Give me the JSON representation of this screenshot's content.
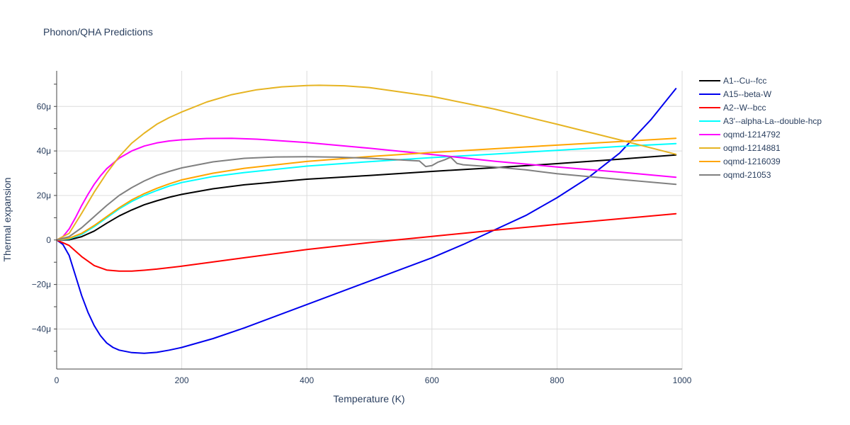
{
  "chart_data": {
    "type": "line",
    "title": "Phonon/QHA Predictions",
    "xlabel": "Temperature (K)",
    "ylabel": "Thermal expansion",
    "xlim": [
      0,
      1000
    ],
    "ylim": [
      -5.8e-05,
      7.6e-05
    ],
    "x_ticks": [
      0,
      200,
      400,
      600,
      800,
      1000
    ],
    "x_tick_labels": [
      "0",
      "200",
      "400",
      "600",
      "800",
      "1000"
    ],
    "y_ticks": [
      -4e-05,
      -2e-05,
      0,
      2e-05,
      4e-05,
      6e-05
    ],
    "y_tick_labels": [
      "−40μ",
      "−20μ",
      "0",
      "20μ",
      "40μ",
      "60μ"
    ],
    "grid": true,
    "legend_position": "right",
    "series": [
      {
        "name": "A1--Cu--fcc",
        "color": "#000000",
        "x": [
          0,
          20,
          40,
          60,
          80,
          100,
          120,
          140,
          160,
          180,
          200,
          250,
          300,
          400,
          500,
          600,
          700,
          800,
          900,
          990
        ],
        "y": [
          0,
          1e-07,
          1.5e-06,
          4e-06,
          7.5e-06,
          1.08e-05,
          1.35e-05,
          1.58e-05,
          1.76e-05,
          1.92e-05,
          2.05e-05,
          2.3e-05,
          2.48e-05,
          2.73e-05,
          2.9e-05,
          3.08e-05,
          3.25e-05,
          3.43e-05,
          3.63e-05,
          3.82e-05
        ]
      },
      {
        "name": "A15--beta-W",
        "color": "#0000ee",
        "x": [
          0,
          10,
          20,
          30,
          40,
          50,
          60,
          70,
          80,
          90,
          100,
          120,
          140,
          160,
          180,
          200,
          250,
          300,
          400,
          500,
          600,
          650,
          700,
          750,
          800,
          850,
          900,
          950,
          990
        ],
        "y": [
          0,
          -2e-06,
          -7e-06,
          -1.6e-05,
          -2.5e-05,
          -3.25e-05,
          -3.85e-05,
          -4.3e-05,
          -4.63e-05,
          -4.83e-05,
          -4.95e-05,
          -5.06e-05,
          -5.09e-05,
          -5.05e-05,
          -4.95e-05,
          -4.83e-05,
          -4.43e-05,
          -3.95e-05,
          -2.9e-05,
          -1.85e-05,
          -8e-06,
          -2e-06,
          4.5e-06,
          1.1e-05,
          1.9e-05,
          2.8e-05,
          3.9e-05,
          5.4e-05,
          6.8e-05
        ]
      },
      {
        "name": "A2--W--bcc",
        "color": "#ff0000",
        "x": [
          0,
          20,
          40,
          60,
          80,
          100,
          120,
          140,
          160,
          200,
          300,
          400,
          500,
          600,
          700,
          800,
          900,
          990
        ],
        "y": [
          0,
          -2.5e-06,
          -7.5e-06,
          -1.15e-05,
          -1.35e-05,
          -1.4e-05,
          -1.4e-05,
          -1.36e-05,
          -1.31e-05,
          -1.18e-05,
          -8e-06,
          -4.3e-06,
          -1.2e-06,
          1.6e-06,
          4.4e-06,
          7e-06,
          9.5e-06,
          1.18e-05
        ]
      },
      {
        "name": "A3'--alpha-La--double-hcp",
        "color": "#00ffff",
        "x": [
          0,
          20,
          40,
          60,
          80,
          100,
          120,
          140,
          160,
          180,
          200,
          250,
          300,
          400,
          500,
          600,
          700,
          800,
          900,
          990
        ],
        "y": [
          0,
          5e-07,
          2.5e-06,
          6e-06,
          1e-05,
          1.4e-05,
          1.73e-05,
          2e-05,
          2.22e-05,
          2.42e-05,
          2.58e-05,
          2.85e-05,
          3.03e-05,
          3.32e-05,
          3.52e-05,
          3.7e-05,
          3.86e-05,
          4.03e-05,
          4.2e-05,
          4.33e-05
        ]
      },
      {
        "name": "oqmd-1214792",
        "color": "#ff00ff",
        "x": [
          0,
          10,
          20,
          30,
          40,
          50,
          60,
          70,
          80,
          100,
          120,
          140,
          160,
          180,
          200,
          240,
          280,
          320,
          400,
          500,
          600,
          700,
          800,
          900,
          990
        ],
        "y": [
          0,
          1.5e-06,
          5e-06,
          1e-05,
          1.55e-05,
          2.05e-05,
          2.5e-05,
          2.88e-05,
          3.2e-05,
          3.68e-05,
          4e-05,
          4.22e-05,
          4.36e-05,
          4.45e-05,
          4.5e-05,
          4.56e-05,
          4.57e-05,
          4.53e-05,
          4.38e-05,
          4.12e-05,
          3.84e-05,
          3.54e-05,
          3.28e-05,
          3.05e-05,
          2.82e-05
        ]
      },
      {
        "name": "oqmd-1214881",
        "color": "#e6b422",
        "x": [
          0,
          20,
          40,
          60,
          80,
          100,
          120,
          140,
          160,
          180,
          200,
          240,
          280,
          320,
          360,
          400,
          420,
          460,
          500,
          600,
          700,
          800,
          900,
          990
        ],
        "y": [
          0,
          3e-06,
          1.2e-05,
          2.15e-05,
          3e-05,
          3.75e-05,
          4.35e-05,
          4.8e-05,
          5.2e-05,
          5.5e-05,
          5.75e-05,
          6.2e-05,
          6.53e-05,
          6.75e-05,
          6.88e-05,
          6.94e-05,
          6.95e-05,
          6.93e-05,
          6.85e-05,
          6.45e-05,
          5.88e-05,
          5.2e-05,
          4.5e-05,
          3.85e-05
        ]
      },
      {
        "name": "oqmd-1216039",
        "color": "#ffa500",
        "x": [
          0,
          20,
          40,
          60,
          80,
          100,
          120,
          140,
          160,
          180,
          200,
          250,
          300,
          400,
          500,
          600,
          700,
          800,
          900,
          990
        ],
        "y": [
          0,
          8e-07,
          3e-06,
          6.5e-06,
          1.05e-05,
          1.45e-05,
          1.8e-05,
          2.08e-05,
          2.32e-05,
          2.52e-05,
          2.7e-05,
          3e-05,
          3.22e-05,
          3.53e-05,
          3.75e-05,
          3.93e-05,
          4.1e-05,
          4.26e-05,
          4.42e-05,
          4.57e-05
        ]
      },
      {
        "name": "oqmd-21053",
        "color": "#808080",
        "x": [
          0,
          20,
          40,
          60,
          80,
          100,
          120,
          140,
          160,
          180,
          200,
          250,
          300,
          350,
          400,
          450,
          500,
          550,
          580,
          590,
          600,
          610,
          620,
          630,
          640,
          650,
          700,
          750,
          800,
          900,
          990
        ],
        "y": [
          0,
          1.5e-06,
          5.5e-06,
          1.05e-05,
          1.55e-05,
          2e-05,
          2.35e-05,
          2.65e-05,
          2.9e-05,
          3.08e-05,
          3.24e-05,
          3.51e-05,
          3.67e-05,
          3.73e-05,
          3.74e-05,
          3.72e-05,
          3.67e-05,
          3.6e-05,
          3.55e-05,
          3.3e-05,
          3.34e-05,
          3.5e-05,
          3.6e-05,
          3.72e-05,
          3.44e-05,
          3.38e-05,
          3.28e-05,
          3.15e-05,
          2.98e-05,
          2.72e-05,
          2.5e-05
        ]
      }
    ]
  }
}
